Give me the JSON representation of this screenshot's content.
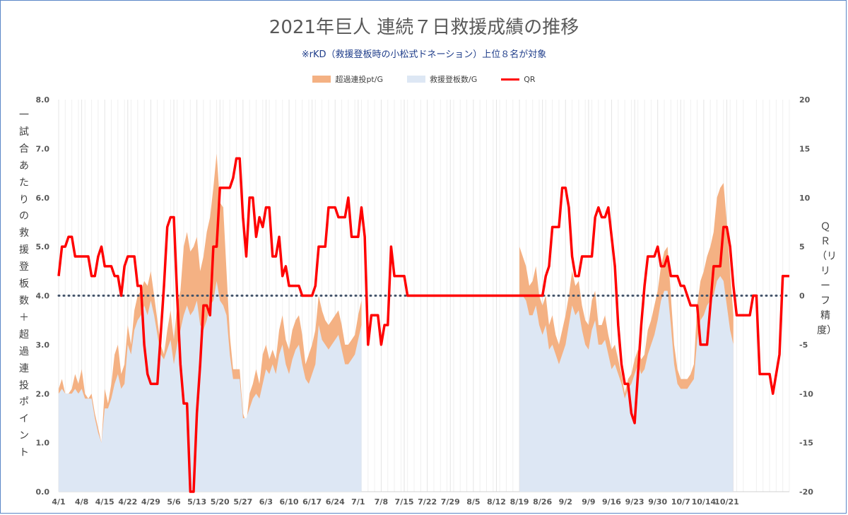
{
  "chart_data": {
    "type": "area+line",
    "title": "2021年巨人 連続７日救援成績の推移",
    "subtitle": "※rKD（救援登板時の小松式ドネーション）上位８名が対象",
    "left_axis_label": "一試合あたりの救援登板数＋超過連投ポイント",
    "right_axis_label": "ＱＲ（リリーフ精度）",
    "left_ylim": [
      0,
      8
    ],
    "left_ticks": [
      "0.0",
      "1.0",
      "2.0",
      "3.0",
      "4.0",
      "5.0",
      "6.0",
      "7.0",
      "8.0"
    ],
    "right_ylim": [
      -20,
      20
    ],
    "right_ticks": [
      "-20",
      "-15",
      "-10",
      "-5",
      "0",
      "5",
      "10",
      "15",
      "20"
    ],
    "x_tick_labels": [
      "4/1",
      "4/8",
      "4/15",
      "4/22",
      "4/29",
      "5/6",
      "5/13",
      "5/20",
      "5/27",
      "6/3",
      "6/10",
      "6/17",
      "6/24",
      "7/1",
      "7/8",
      "7/15",
      "7/22",
      "7/29",
      "8/5",
      "8/12",
      "8/19",
      "8/26",
      "9/2",
      "9/9",
      "9/16",
      "9/23",
      "9/30",
      "10/7",
      "10/14",
      "10/21"
    ],
    "reference_line": 4.0,
    "grid": "vertical",
    "legend_position": "top",
    "series": [
      {
        "name": "超過連投pt/G",
        "color": "#f4b183",
        "values": [
          2.1,
          2.3,
          2.0,
          2.0,
          2.1,
          2.4,
          2.2,
          2.5,
          2.0,
          1.9,
          2.0,
          1.6,
          1.3,
          1.0,
          2.1,
          1.8,
          2.2,
          2.8,
          3.0,
          2.4,
          2.6,
          3.4,
          3.0,
          3.7,
          4.0,
          4.1,
          4.3,
          4.2,
          4.5,
          4.0,
          3.5,
          3.0,
          2.8,
          3.3,
          3.7,
          3.1,
          3.8,
          4.1,
          5.0,
          5.3,
          4.9,
          5.0,
          5.2,
          4.5,
          4.8,
          5.3,
          5.6,
          6.2,
          6.9,
          5.9,
          5.8,
          4.5,
          3.2,
          2.5,
          2.5,
          2.5,
          1.6,
          1.4,
          2.0,
          2.2,
          2.5,
          2.2,
          2.8,
          3.0,
          2.7,
          2.9,
          2.7,
          3.3,
          3.6,
          3.1,
          2.9,
          3.3,
          3.5,
          3.6,
          3.2,
          2.6,
          2.8,
          3.0,
          3.3,
          4.0,
          3.7,
          3.5,
          3.4,
          3.5,
          3.6,
          3.7,
          3.4,
          3.0,
          3.0,
          3.1,
          3.2,
          3.6,
          3.9,
          null,
          null,
          null,
          null,
          null,
          null,
          null,
          null,
          null,
          null,
          null,
          null,
          null,
          null,
          null,
          null,
          null,
          null,
          null,
          null,
          null,
          null,
          null,
          null,
          null,
          null,
          null,
          null,
          null,
          null,
          null,
          null,
          null,
          null,
          null,
          null,
          null,
          null,
          null,
          null,
          null,
          null,
          null,
          null,
          null,
          null,
          null,
          5.0,
          4.8,
          4.6,
          4.2,
          4.3,
          4.6,
          4.0,
          3.8,
          4.0,
          3.4,
          3.6,
          3.2,
          3.0,
          3.3,
          3.6,
          4.0,
          4.5,
          4.2,
          4.3,
          3.8,
          3.5,
          3.4,
          3.9,
          4.1,
          3.4,
          3.4,
          3.6,
          3.2,
          2.9,
          3.0,
          2.7,
          2.4,
          2.0,
          2.3,
          2.4,
          2.7,
          2.9,
          2.7,
          2.8,
          3.3,
          3.5,
          3.8,
          4.1,
          4.6,
          4.9,
          5.0,
          4.0,
          3.0,
          2.5,
          2.3,
          2.3,
          2.3,
          2.4,
          2.6,
          3.8,
          4.3,
          4.5,
          4.8,
          5.0,
          5.3,
          6.0,
          6.2,
          6.3,
          5.5,
          4.5,
          3.6
        ]
      },
      {
        "name": "救援登板数/G",
        "color": "#dde7f4",
        "values": [
          2.0,
          2.1,
          2.0,
          2.0,
          2.0,
          2.1,
          2.0,
          2.1,
          1.9,
          1.9,
          1.9,
          1.5,
          1.2,
          1.0,
          1.7,
          1.7,
          1.9,
          2.2,
          2.4,
          2.1,
          2.2,
          3.0,
          2.8,
          3.3,
          3.5,
          3.6,
          3.8,
          3.6,
          3.9,
          3.6,
          3.2,
          2.8,
          2.7,
          2.9,
          3.1,
          2.6,
          3.0,
          3.3,
          3.6,
          3.8,
          3.6,
          3.7,
          3.9,
          3.4,
          3.3,
          3.5,
          3.8,
          3.9,
          4.3,
          3.9,
          3.8,
          3.6,
          2.8,
          2.3,
          2.3,
          2.3,
          1.5,
          1.5,
          1.7,
          1.9,
          2.0,
          1.9,
          2.2,
          2.5,
          2.4,
          2.6,
          2.4,
          2.8,
          3.0,
          2.6,
          2.4,
          2.7,
          2.9,
          3.0,
          2.6,
          2.3,
          2.2,
          2.4,
          2.6,
          3.4,
          3.1,
          3.0,
          2.9,
          3.0,
          3.1,
          3.2,
          2.9,
          2.6,
          2.6,
          2.7,
          2.8,
          3.1,
          3.4,
          null,
          null,
          null,
          null,
          null,
          null,
          null,
          null,
          null,
          null,
          null,
          null,
          null,
          null,
          null,
          null,
          null,
          null,
          null,
          null,
          null,
          null,
          null,
          null,
          null,
          null,
          null,
          null,
          null,
          null,
          null,
          null,
          null,
          null,
          null,
          null,
          null,
          null,
          null,
          null,
          null,
          null,
          null,
          null,
          null,
          null,
          null,
          4.0,
          4.0,
          3.9,
          3.6,
          3.6,
          3.8,
          3.4,
          3.2,
          3.4,
          2.9,
          3.0,
          2.8,
          2.6,
          2.8,
          3.0,
          3.4,
          3.8,
          3.6,
          3.7,
          3.3,
          3.0,
          2.9,
          3.3,
          3.5,
          3.0,
          3.0,
          3.1,
          2.8,
          2.5,
          2.6,
          2.4,
          2.2,
          1.9,
          2.1,
          2.2,
          2.4,
          2.6,
          2.4,
          2.5,
          2.8,
          3.0,
          3.2,
          3.5,
          3.9,
          4.1,
          4.1,
          3.4,
          2.6,
          2.2,
          2.1,
          2.1,
          2.1,
          2.2,
          2.3,
          3.1,
          3.5,
          3.6,
          3.8,
          3.9,
          4.0,
          4.3,
          4.4,
          4.3,
          3.8,
          3.3,
          3.0
        ]
      },
      {
        "name": "QR",
        "color": "#ff0000",
        "axis": "right",
        "values": [
          2,
          5,
          5,
          6,
          6,
          4,
          4,
          4,
          4,
          4,
          2,
          2,
          4,
          5,
          3,
          3,
          3,
          2,
          2,
          0,
          3,
          4,
          4,
          4,
          1,
          1,
          -5,
          -8,
          -9,
          -9,
          -9,
          -4,
          1,
          7,
          8,
          8,
          0,
          -7,
          -11,
          -11,
          -20,
          -20,
          -12,
          -7,
          -1,
          -1,
          -2,
          5,
          5,
          11,
          11,
          11,
          11,
          12,
          14,
          14,
          8,
          4,
          10,
          10,
          6,
          8,
          7,
          9,
          9,
          4,
          4,
          6,
          2,
          3,
          1,
          1,
          1,
          1,
          0,
          0,
          0,
          0,
          1,
          5,
          5,
          5,
          9,
          9,
          9,
          8,
          8,
          8,
          10,
          6,
          6,
          6,
          9,
          6,
          -5,
          -2,
          -2,
          -2,
          -5,
          -3,
          -3,
          5,
          2,
          2,
          2,
          2,
          0,
          0,
          0,
          0,
          0,
          0,
          0,
          0,
          0,
          0,
          0,
          0,
          0,
          0,
          0,
          0,
          0,
          0,
          0,
          0,
          0,
          0,
          0,
          0,
          0,
          0,
          0,
          0,
          0,
          0,
          0,
          0,
          0,
          0,
          0,
          0,
          0,
          0,
          0,
          0,
          0,
          0,
          2,
          3,
          7,
          7,
          7,
          11,
          11,
          9,
          4,
          2,
          2,
          4,
          4,
          4,
          4,
          8,
          9,
          8,
          8,
          9,
          6,
          3,
          -3,
          -7,
          -9,
          -9,
          -12,
          -13,
          -8,
          -3,
          1,
          4,
          4,
          4,
          5,
          3,
          3,
          4,
          2,
          2,
          2,
          1,
          1,
          0,
          -1,
          -1,
          -1,
          -5,
          -5,
          -5,
          -1,
          3,
          3,
          3,
          7,
          7,
          5,
          1,
          -2,
          -2,
          -2,
          -2,
          -2,
          0,
          0,
          -8,
          -8,
          -8,
          -8,
          -10,
          -8,
          -6,
          2,
          2,
          2
        ]
      }
    ]
  }
}
